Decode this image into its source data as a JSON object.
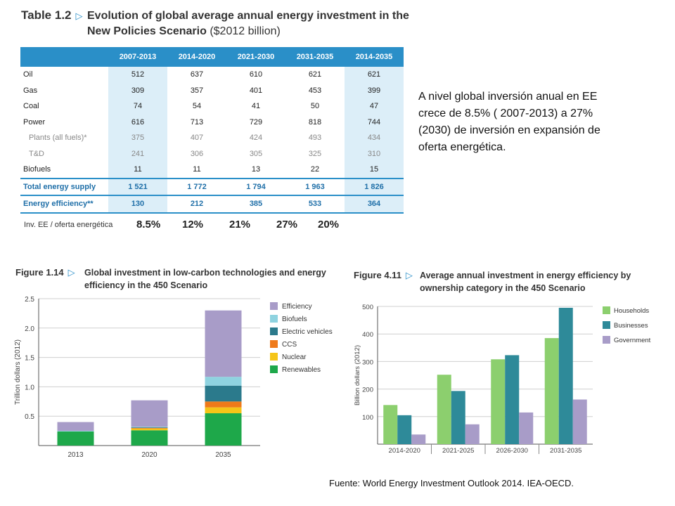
{
  "table": {
    "label": "Table 1.2",
    "title": "Evolution of global average annual energy investment in the New Policies Scenario",
    "unit": "($2012 billion)",
    "columns": [
      "2007-2013",
      "2014-2020",
      "2021-2030",
      "2031-2035",
      "2014-2035"
    ],
    "rows": [
      {
        "label": "Oil",
        "values": [
          "512",
          "637",
          "610",
          "621",
          "621"
        ],
        "style": "main"
      },
      {
        "label": "Gas",
        "values": [
          "309",
          "357",
          "401",
          "453",
          "399"
        ],
        "style": "main"
      },
      {
        "label": "Coal",
        "values": [
          "74",
          "54",
          "41",
          "50",
          "47"
        ],
        "style": "main"
      },
      {
        "label": "Power",
        "values": [
          "616",
          "713",
          "729",
          "818",
          "744"
        ],
        "style": "main"
      },
      {
        "label": "Plants (all fuels)*",
        "values": [
          "375",
          "407",
          "424",
          "493",
          "434"
        ],
        "style": "sub"
      },
      {
        "label": "T&D",
        "values": [
          "241",
          "306",
          "305",
          "325",
          "310"
        ],
        "style": "sub"
      },
      {
        "label": "Biofuels",
        "values": [
          "11",
          "11",
          "13",
          "22",
          "15"
        ],
        "style": "main"
      },
      {
        "label": "Total energy supply",
        "values": [
          "1 521",
          "1 772",
          "1 794",
          "1 963",
          "1 826"
        ],
        "style": "total"
      },
      {
        "label": "Energy efficiency**",
        "values": [
          "130",
          "212",
          "385",
          "533",
          "364"
        ],
        "style": "eff"
      }
    ]
  },
  "ratio": {
    "label": "Inv. EE / oferta energética",
    "values": [
      "8.5%",
      "12%",
      "21%",
      "27%",
      "20%"
    ]
  },
  "note": "A nivel global inversión anual en EE crece de 8.5% ( 2007-2013) a 27% (2030) de inversión en expansión de oferta energética.",
  "source": "Fuente: World Energy Investment Outlook 2014. IEA-OECD.",
  "chart_data": [
    {
      "type": "bar",
      "stacked": true,
      "label": "Figure 1.14",
      "title": "Global investment in low-carbon technologies and energy efficiency in the 450 Scenario",
      "ylabel": "Trillion dollars (2012)",
      "ylim": [
        0,
        2.5
      ],
      "yticks": [
        "0.5",
        "1.0",
        "1.5",
        "2.0",
        "2.5"
      ],
      "categories": [
        "2013",
        "2020",
        "2035"
      ],
      "series": [
        {
          "name": "Renewables",
          "color": "#1ea84a",
          "values": [
            0.24,
            0.26,
            0.55
          ]
        },
        {
          "name": "Nuclear",
          "color": "#f5c518",
          "values": [
            0.0,
            0.03,
            0.1
          ]
        },
        {
          "name": "CCS",
          "color": "#ef7a1a",
          "values": [
            0.0,
            0.01,
            0.1
          ]
        },
        {
          "name": "Electric vehicles",
          "color": "#2b7a8c",
          "values": [
            0.0,
            0.01,
            0.27
          ]
        },
        {
          "name": "Biofuels",
          "color": "#8fd3e0",
          "values": [
            0.01,
            0.01,
            0.15
          ]
        },
        {
          "name": "Efficiency",
          "color": "#a89cc8",
          "values": [
            0.15,
            0.45,
            1.13
          ]
        }
      ],
      "legend": "top-right"
    },
    {
      "type": "bar",
      "label": "Figure 4.11",
      "title": "Average annual investment in energy efficiency by ownership category in the 450 Scenario",
      "ylabel": "Billion dollars (2012)",
      "ylim": [
        0,
        500
      ],
      "yticks": [
        "100",
        "200",
        "300",
        "400",
        "500"
      ],
      "categories": [
        "2014-2020",
        "2021-2025",
        "2026-2030",
        "2031-2035"
      ],
      "series": [
        {
          "name": "Households",
          "color": "#8ccf6e",
          "values": [
            142,
            252,
            308,
            385
          ]
        },
        {
          "name": "Businesses",
          "color": "#2e8a99",
          "values": [
            105,
            193,
            323,
            495
          ]
        },
        {
          "name": "Government",
          "color": "#a89cc8",
          "values": [
            35,
            72,
            115,
            162
          ]
        }
      ],
      "legend": "right"
    }
  ]
}
